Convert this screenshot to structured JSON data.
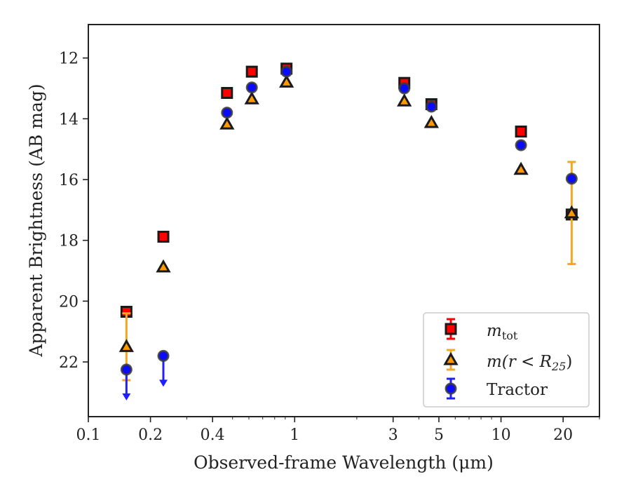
{
  "chart_data": {
    "type": "scatter",
    "x_scale": "log",
    "y_inverted": true,
    "xlim": [
      0.1,
      30
    ],
    "ylim": [
      23.8,
      10.9
    ],
    "xlabel": "Observed-frame Wavelength (μm)",
    "ylabel": "Apparent Brightness (AB mag)",
    "x_ticks": [
      {
        "value": 0.1,
        "label": "0.1"
      },
      {
        "value": 0.2,
        "label": "0.2"
      },
      {
        "value": 0.4,
        "label": "0.4"
      },
      {
        "value": 1,
        "label": "1"
      },
      {
        "value": 3,
        "label": "3"
      },
      {
        "value": 5,
        "label": "5"
      },
      {
        "value": 10,
        "label": "10"
      },
      {
        "value": 20,
        "label": "20"
      }
    ],
    "y_ticks": [
      {
        "value": 12,
        "label": "12"
      },
      {
        "value": 14,
        "label": "14"
      },
      {
        "value": 16,
        "label": "16"
      },
      {
        "value": 18,
        "label": "18"
      },
      {
        "value": 20,
        "label": "20"
      },
      {
        "value": 22,
        "label": "22"
      }
    ],
    "grid": false,
    "legend_position": "bottom-right",
    "series": [
      {
        "name": "m_tot",
        "legend_main": "m",
        "legend_sub": "tot",
        "marker": "square",
        "color": "#ff0000",
        "edge_color": "#1a1a1a",
        "err_color": "#ff0000",
        "points": [
          {
            "x": 0.153,
            "y": 20.35
          },
          {
            "x": 0.231,
            "y": 17.88
          },
          {
            "x": 0.47,
            "y": 13.15
          },
          {
            "x": 0.62,
            "y": 12.45
          },
          {
            "x": 0.913,
            "y": 12.35
          },
          {
            "x": 3.4,
            "y": 12.82
          },
          {
            "x": 4.6,
            "y": 13.52
          },
          {
            "x": 12.5,
            "y": 14.42
          },
          {
            "x": 22.0,
            "y": 17.15
          }
        ]
      },
      {
        "name": "m(r < R25)",
        "legend_main": "m(r < R",
        "legend_sub": "25",
        "legend_tail": ")",
        "marker": "triangle",
        "color": "#ff9900",
        "edge_color": "#1a1a1a",
        "err_color": "#f5a623",
        "points": [
          {
            "x": 0.153,
            "y": 21.5,
            "err": 1.1
          },
          {
            "x": 0.231,
            "y": 18.88
          },
          {
            "x": 0.47,
            "y": 14.18
          },
          {
            "x": 0.62,
            "y": 13.35
          },
          {
            "x": 0.913,
            "y": 12.8
          },
          {
            "x": 3.4,
            "y": 13.42
          },
          {
            "x": 4.6,
            "y": 14.13
          },
          {
            "x": 12.5,
            "y": 15.67
          },
          {
            "x": 22.0,
            "y": 17.1,
            "err": 1.68
          }
        ]
      },
      {
        "name": "Tractor",
        "marker": "circle",
        "color": "#0a0aff",
        "edge_color": "#3a3a3a",
        "err_color": "#1f1fff",
        "points": [
          {
            "x": 0.153,
            "y": 22.25,
            "upper_limit": true
          },
          {
            "x": 0.231,
            "y": 21.8,
            "upper_limit": true
          },
          {
            "x": 0.47,
            "y": 13.8
          },
          {
            "x": 0.62,
            "y": 12.97
          },
          {
            "x": 0.913,
            "y": 12.45
          },
          {
            "x": 3.4,
            "y": 13.0
          },
          {
            "x": 4.6,
            "y": 13.6
          },
          {
            "x": 12.5,
            "y": 14.87
          },
          {
            "x": 22.0,
            "y": 15.97
          }
        ]
      }
    ]
  }
}
